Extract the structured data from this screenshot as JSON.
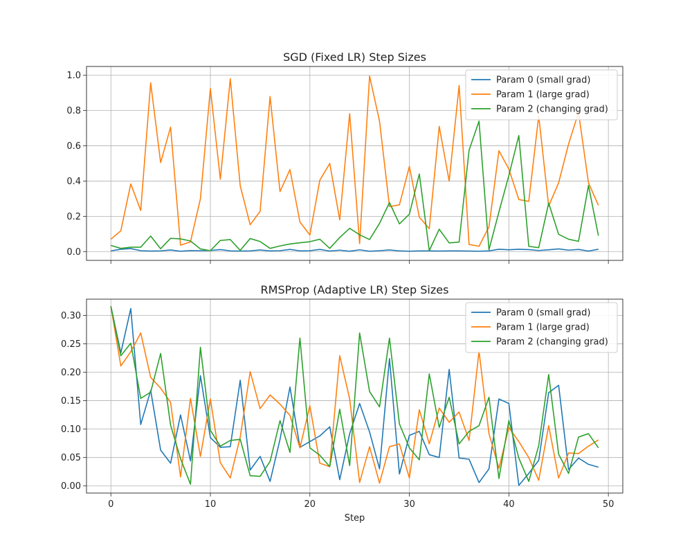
{
  "chart_data": [
    {
      "type": "line",
      "title": "SGD (Fixed LR) Step Sizes",
      "xlabel": "",
      "ylabel": "",
      "xlim": [
        -2.45,
        51.45
      ],
      "ylim": [
        -0.05,
        1.05
      ],
      "xticks": [
        0,
        10,
        20,
        30,
        40,
        50
      ],
      "xtick_labels_shown": false,
      "yticks": [
        0.0,
        0.2,
        0.4,
        0.6,
        0.8,
        1.0
      ],
      "ytick_labels": [
        "0.0",
        "0.2",
        "0.4",
        "0.6",
        "0.8",
        "1.0"
      ],
      "grid": true,
      "legend": "top-right",
      "x": [
        0,
        1,
        2,
        3,
        4,
        5,
        6,
        7,
        8,
        9,
        10,
        11,
        12,
        13,
        14,
        15,
        16,
        17,
        18,
        19,
        20,
        21,
        22,
        23,
        24,
        25,
        26,
        27,
        28,
        29,
        30,
        31,
        32,
        33,
        34,
        35,
        36,
        37,
        38,
        39,
        40,
        41,
        42,
        43,
        44,
        45,
        46,
        47,
        48,
        49
      ],
      "series": [
        {
          "name": "Param 0 (small grad)",
          "color": "#1f77b4",
          "values": [
            0.004,
            0.013,
            0.017,
            0.005,
            0.003,
            0.004,
            0.009,
            0.002,
            0.006,
            0.005,
            0.006,
            0.011,
            0.004,
            0.003,
            0.004,
            0.009,
            0.004,
            0.005,
            0.012,
            0.004,
            0.005,
            0.012,
            0.003,
            0.008,
            0.002,
            0.01,
            0.002,
            0.005,
            0.009,
            0.004,
            0.002,
            0.004,
            0.004,
            0.003,
            0.004,
            0.004,
            0.003,
            0.002,
            0.004,
            0.013,
            0.01,
            0.013,
            0.011,
            0.006,
            0.01,
            0.015,
            0.008,
            0.012,
            0.003,
            0.013
          ]
        },
        {
          "name": "Param 1 (large grad)",
          "color": "#ff7f0e",
          "values": [
            0.07,
            0.118,
            0.384,
            0.233,
            0.957,
            0.505,
            0.706,
            0.036,
            0.055,
            0.3,
            0.925,
            0.41,
            0.98,
            0.373,
            0.152,
            0.228,
            0.88,
            0.34,
            0.465,
            0.168,
            0.094,
            0.405,
            0.5,
            0.18,
            0.782,
            0.045,
            0.996,
            0.74,
            0.255,
            0.265,
            0.483,
            0.195,
            0.13,
            0.71,
            0.4,
            0.942,
            0.04,
            0.03,
            0.14,
            0.572,
            0.468,
            0.295,
            0.285,
            0.77,
            0.258,
            0.39,
            0.61,
            0.79,
            0.39,
            0.262
          ]
        },
        {
          "name": "Param 2 (changing grad)",
          "color": "#2ca02c",
          "values": [
            0.035,
            0.018,
            0.025,
            0.025,
            0.088,
            0.016,
            0.075,
            0.072,
            0.06,
            0.015,
            0.005,
            0.063,
            0.068,
            0.007,
            0.074,
            0.057,
            0.018,
            0.032,
            0.043,
            0.05,
            0.056,
            0.07,
            0.018,
            0.08,
            0.132,
            0.095,
            0.068,
            0.16,
            0.278,
            0.157,
            0.212,
            0.44,
            0.005,
            0.127,
            0.049,
            0.054,
            0.575,
            0.74,
            0.01,
            0.225,
            0.432,
            0.658,
            0.03,
            0.022,
            0.275,
            0.098,
            0.07,
            0.058,
            0.375,
            0.09
          ]
        }
      ]
    },
    {
      "type": "line",
      "title": "RMSProp (Adaptive LR) Step Sizes",
      "xlabel": "Step",
      "ylabel": "",
      "xlim": [
        -2.45,
        51.45
      ],
      "ylim": [
        -0.0125,
        0.3285
      ],
      "xticks": [
        0,
        10,
        20,
        30,
        40,
        50
      ],
      "xtick_labels": [
        "0",
        "10",
        "20",
        "30",
        "40",
        "50"
      ],
      "yticks": [
        0.0,
        0.05,
        0.1,
        0.15,
        0.2,
        0.25,
        0.3
      ],
      "ytick_labels": [
        "0.00",
        "0.05",
        "0.10",
        "0.15",
        "0.20",
        "0.25",
        "0.30"
      ],
      "grid": true,
      "legend": "top-right",
      "x": [
        0,
        1,
        2,
        3,
        4,
        5,
        6,
        7,
        8,
        9,
        10,
        11,
        12,
        13,
        14,
        15,
        16,
        17,
        18,
        19,
        20,
        21,
        22,
        23,
        24,
        25,
        26,
        27,
        28,
        29,
        30,
        31,
        32,
        33,
        34,
        35,
        36,
        37,
        38,
        39,
        40,
        41,
        42,
        43,
        44,
        45,
        46,
        47,
        48,
        49
      ],
      "series": [
        {
          "name": "Param 0 (small grad)",
          "color": "#1f77b4",
          "values": [
            0.316,
            0.234,
            0.312,
            0.108,
            0.168,
            0.063,
            0.04,
            0.125,
            0.044,
            0.194,
            0.085,
            0.068,
            0.069,
            0.186,
            0.028,
            0.052,
            0.008,
            0.082,
            0.174,
            0.068,
            0.078,
            0.088,
            0.104,
            0.011,
            0.092,
            0.145,
            0.095,
            0.03,
            0.224,
            0.021,
            0.089,
            0.096,
            0.055,
            0.05,
            0.205,
            0.049,
            0.047,
            0.006,
            0.03,
            0.153,
            0.145,
            0.001,
            0.022,
            0.045,
            0.164,
            0.177,
            0.029,
            0.049,
            0.038,
            0.033
          ]
        },
        {
          "name": "Param 1 (large grad)",
          "color": "#ff7f0e",
          "values": [
            0.316,
            0.211,
            0.236,
            0.269,
            0.191,
            0.172,
            0.147,
            0.016,
            0.154,
            0.052,
            0.153,
            0.041,
            0.014,
            0.086,
            0.201,
            0.136,
            0.16,
            0.144,
            0.124,
            0.067,
            0.141,
            0.04,
            0.034,
            0.229,
            0.153,
            0.006,
            0.069,
            0.005,
            0.069,
            0.074,
            0.014,
            0.134,
            0.074,
            0.137,
            0.112,
            0.13,
            0.08,
            0.237,
            0.092,
            0.031,
            0.103,
            0.078,
            0.05,
            0.01,
            0.106,
            0.014,
            0.058,
            0.057,
            0.07,
            0.081
          ]
        },
        {
          "name": "Param 2 (changing grad)",
          "color": "#2ca02c",
          "values": [
            0.316,
            0.229,
            0.251,
            0.154,
            0.165,
            0.233,
            0.107,
            0.048,
            0.003,
            0.244,
            0.098,
            0.07,
            0.08,
            0.082,
            0.018,
            0.017,
            0.043,
            0.115,
            0.059,
            0.26,
            0.067,
            0.054,
            0.034,
            0.135,
            0.036,
            0.269,
            0.166,
            0.139,
            0.26,
            0.109,
            0.067,
            0.046,
            0.197,
            0.103,
            0.156,
            0.074,
            0.096,
            0.106,
            0.156,
            0.013,
            0.115,
            0.049,
            0.008,
            0.071,
            0.196,
            0.056,
            0.022,
            0.086,
            0.092,
            0.067
          ]
        }
      ]
    }
  ]
}
